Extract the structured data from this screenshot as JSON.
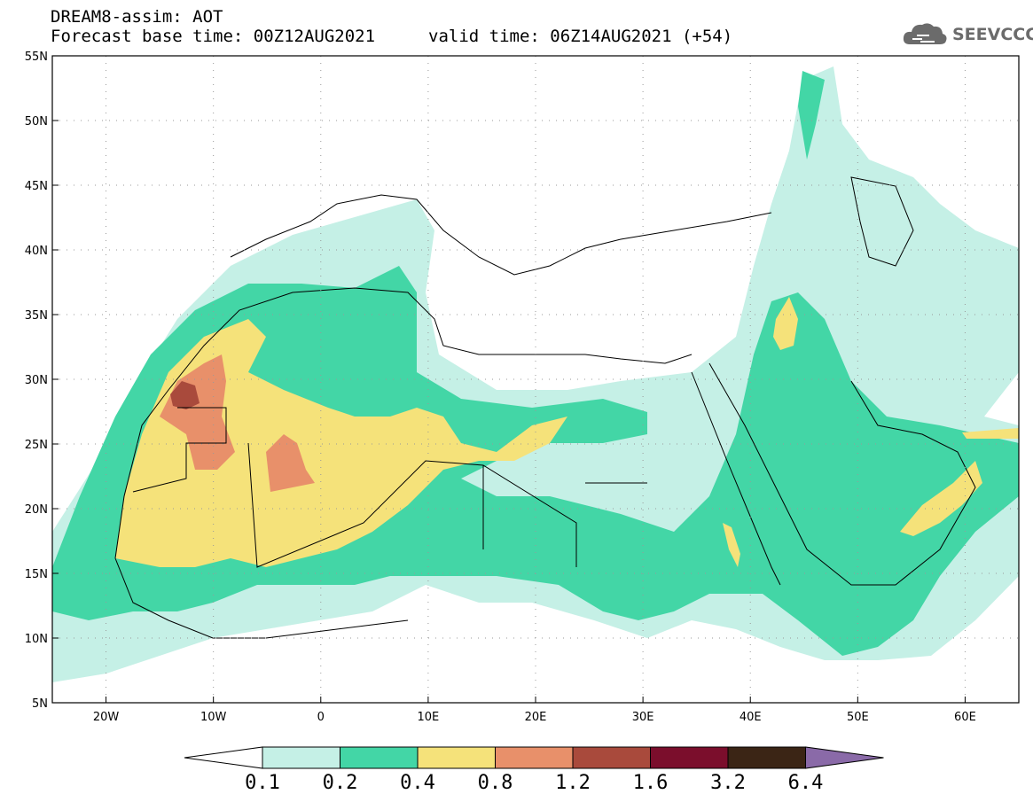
{
  "header": {
    "line1": "DREAM8-assim: AOT",
    "line2": "Forecast base time: 00Z12AUG2021",
    "valid": "valid time: 06Z14AUG2021 (+54)"
  },
  "logo": {
    "text": "SEEVCCC",
    "icon": "cloud-icon"
  },
  "axes": {
    "lon_labels": [
      "20W",
      "10W",
      "0",
      "10E",
      "20E",
      "30E",
      "40E",
      "50E",
      "60E"
    ],
    "lon_values": [
      -20,
      -10,
      0,
      10,
      20,
      30,
      40,
      50,
      60
    ],
    "lat_labels": [
      "55N",
      "50N",
      "45N",
      "40N",
      "35N",
      "30N",
      "25N",
      "20N",
      "15N",
      "10N",
      "5N"
    ],
    "lat_values": [
      55,
      50,
      45,
      40,
      35,
      30,
      25,
      20,
      15,
      10,
      5
    ],
    "lon_range": [
      -25,
      65
    ],
    "lat_range": [
      5,
      55
    ],
    "grid": "dotted"
  },
  "colorbar": {
    "labels": [
      "0.1",
      "0.2",
      "0.4",
      "0.8",
      "1.2",
      "1.6",
      "3.2",
      "6.4"
    ],
    "colors": [
      "#ffffff",
      "#c5f0e6",
      "#43d6a6",
      "#f5e27a",
      "#e8906a",
      "#a94a3c",
      "#7b0e2c",
      "#3b2515",
      "#8a6aa8"
    ]
  },
  "legend_levels": {
    "0.1": "#c5f0e6",
    "0.2": "#43d6a6",
    "0.4": "#f5e27a",
    "0.8": "#e8906a",
    "1.2": "#a94a3c"
  }
}
